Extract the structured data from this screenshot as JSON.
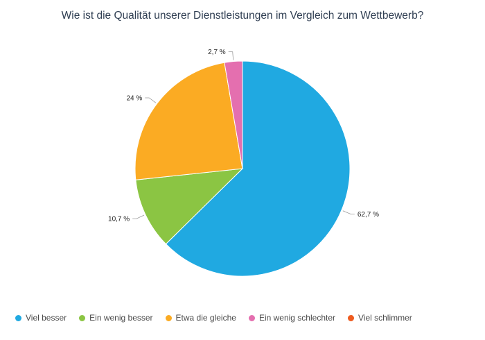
{
  "chart_data": {
    "type": "pie",
    "title": "Wie ist die Qualität unserer Dienstleistungen im Vergleich zum Wettbewerb?",
    "categories": [
      "Viel besser",
      "Ein wenig besser",
      "Etwa die gleiche",
      "Ein wenig schlechter",
      "Viel schlimmer"
    ],
    "values": [
      62.7,
      10.7,
      24,
      2.7,
      0
    ],
    "labels": [
      "62,7 %",
      "10,7 %",
      "24 %",
      "2,7 %",
      ""
    ],
    "colors": [
      "#20a9e1",
      "#8bc543",
      "#fbab23",
      "#e46faf",
      "#ee5b1f"
    ],
    "legend_position": "bottom-left"
  }
}
